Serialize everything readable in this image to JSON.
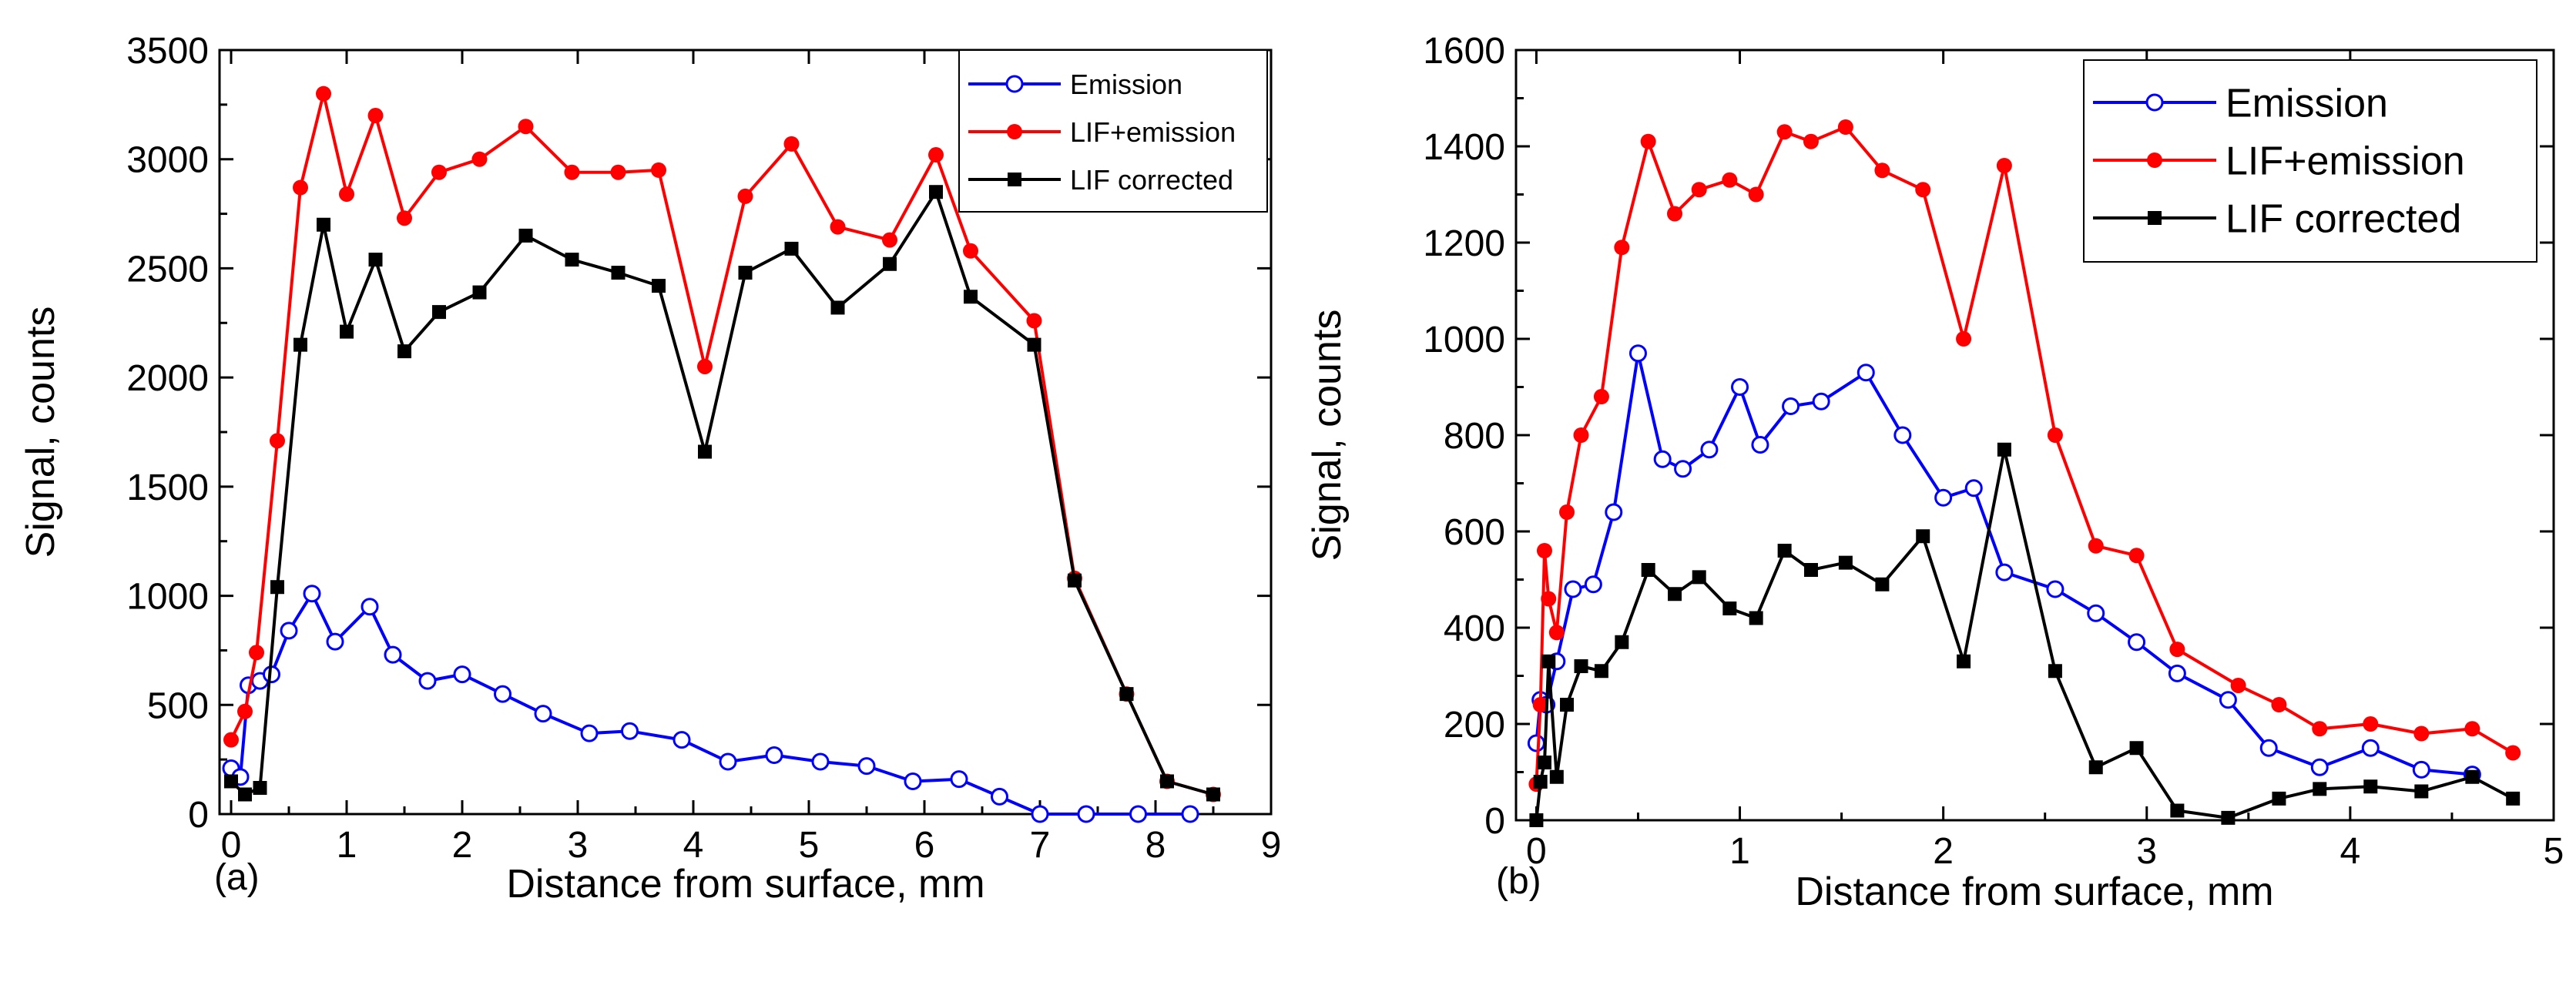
{
  "chart_data": [
    {
      "panel": "(a)",
      "type": "line",
      "title": "",
      "xlabel": "Distance from surface, mm",
      "ylabel": "Signal, counts",
      "xlim": [
        -0.1,
        9
      ],
      "ylim": [
        0,
        3500
      ],
      "xticks": [
        0,
        1,
        2,
        3,
        4,
        5,
        6,
        7,
        8,
        9
      ],
      "yticks": [
        0,
        500,
        1000,
        1500,
        2000,
        2500,
        3000,
        3500
      ],
      "legend": "top-right",
      "series": [
        {
          "name": "Emission",
          "color": "#0000ff",
          "marker": "open-circle",
          "x": [
            0.0,
            0.08,
            0.15,
            0.25,
            0.35,
            0.5,
            0.7,
            0.9,
            1.2,
            1.4,
            1.7,
            2.0,
            2.35,
            2.7,
            3.1,
            3.45,
            3.9,
            4.3,
            4.7,
            5.1,
            5.5,
            5.9,
            6.3,
            6.65,
            7.0,
            7.4,
            7.85,
            8.3
          ],
          "y": [
            210,
            170,
            590,
            610,
            640,
            840,
            1010,
            790,
            950,
            730,
            610,
            640,
            550,
            460,
            370,
            380,
            340,
            240,
            270,
            240,
            220,
            150,
            160,
            80,
            0,
            0,
            0,
            0
          ]
        },
        {
          "name": "LIF+emission",
          "color": "#ff0000",
          "marker": "filled-circle",
          "x": [
            0.0,
            0.12,
            0.22,
            0.4,
            0.6,
            0.8,
            1.0,
            1.25,
            1.5,
            1.8,
            2.15,
            2.55,
            2.95,
            3.35,
            3.7,
            4.1,
            4.45,
            4.85,
            5.25,
            5.7,
            6.1,
            6.4,
            6.95,
            7.3,
            7.75,
            8.1,
            8.5
          ],
          "y": [
            340,
            470,
            740,
            1710,
            2870,
            3300,
            2840,
            3200,
            2730,
            2940,
            3000,
            3150,
            2940,
            2940,
            2950,
            2050,
            2830,
            3070,
            2690,
            2630,
            3020,
            2580,
            2260,
            1080,
            550,
            150,
            90
          ]
        },
        {
          "name": "LIF corrected",
          "color": "#000000",
          "marker": "filled-square",
          "x": [
            0.0,
            0.12,
            0.25,
            0.4,
            0.6,
            0.8,
            1.0,
            1.25,
            1.5,
            1.8,
            2.15,
            2.55,
            2.95,
            3.35,
            3.7,
            4.1,
            4.45,
            4.85,
            5.25,
            5.7,
            6.1,
            6.4,
            6.95,
            7.3,
            7.75,
            8.1,
            8.5
          ],
          "y": [
            150,
            90,
            120,
            1040,
            2150,
            2700,
            2210,
            2540,
            2120,
            2300,
            2390,
            2650,
            2540,
            2480,
            2420,
            1660,
            2480,
            2590,
            2320,
            2520,
            2850,
            2370,
            2150,
            1070,
            550,
            150,
            90
          ]
        }
      ]
    },
    {
      "panel": "(b)",
      "type": "line",
      "title": "",
      "xlabel": "Distance from surface, mm",
      "ylabel": "Signal, counts",
      "xlim": [
        -0.1,
        5
      ],
      "ylim": [
        0,
        1600
      ],
      "xticks": [
        0,
        1,
        2,
        3,
        4,
        5
      ],
      "yticks": [
        0,
        200,
        400,
        600,
        800,
        1000,
        1200,
        1400,
        1600
      ],
      "legend": "top-right",
      "series": [
        {
          "name": "Emission",
          "color": "#0000ff",
          "marker": "open-circle",
          "x": [
            0.0,
            0.02,
            0.05,
            0.1,
            0.18,
            0.28,
            0.38,
            0.5,
            0.62,
            0.72,
            0.85,
            1.0,
            1.1,
            1.25,
            1.4,
            1.62,
            1.8,
            2.0,
            2.15,
            2.3,
            2.55,
            2.75,
            2.95,
            3.15,
            3.4,
            3.6,
            3.85,
            4.1,
            4.35,
            4.6
          ],
          "y": [
            160,
            250,
            240,
            330,
            480,
            490,
            640,
            970,
            750,
            730,
            770,
            900,
            780,
            860,
            870,
            930,
            800,
            670,
            690,
            515,
            480,
            430,
            370,
            305,
            250,
            150,
            110,
            150,
            105,
            95
          ]
        },
        {
          "name": "LIF+emission",
          "color": "#ff0000",
          "marker": "filled-circle",
          "x": [
            0.0,
            0.02,
            0.04,
            0.06,
            0.1,
            0.15,
            0.22,
            0.32,
            0.42,
            0.55,
            0.68,
            0.8,
            0.95,
            1.08,
            1.22,
            1.35,
            1.52,
            1.7,
            1.9,
            2.1,
            2.3,
            2.55,
            2.75,
            2.95,
            3.15,
            3.45,
            3.65,
            3.85,
            4.1,
            4.35,
            4.6,
            4.8
          ],
          "y": [
            75,
            240,
            560,
            460,
            390,
            640,
            800,
            880,
            1190,
            1410,
            1260,
            1310,
            1330,
            1300,
            1430,
            1410,
            1440,
            1350,
            1310,
            1000,
            1360,
            800,
            570,
            550,
            355,
            280,
            240,
            190,
            200,
            180,
            190,
            140
          ]
        },
        {
          "name": "LIF corrected",
          "color": "#000000",
          "marker": "filled-square",
          "x": [
            0.0,
            0.02,
            0.04,
            0.06,
            0.1,
            0.15,
            0.22,
            0.32,
            0.42,
            0.55,
            0.68,
            0.8,
            0.95,
            1.08,
            1.22,
            1.35,
            1.52,
            1.7,
            1.9,
            2.1,
            2.3,
            2.55,
            2.75,
            2.95,
            3.15,
            3.4,
            3.65,
            3.85,
            4.1,
            4.35,
            4.6,
            4.8
          ],
          "y": [
            0,
            80,
            120,
            330,
            90,
            240,
            320,
            310,
            370,
            520,
            470,
            505,
            440,
            420,
            560,
            520,
            535,
            490,
            590,
            330,
            770,
            310,
            110,
            150,
            20,
            5,
            45,
            65,
            70,
            60,
            90,
            45
          ]
        }
      ]
    }
  ]
}
